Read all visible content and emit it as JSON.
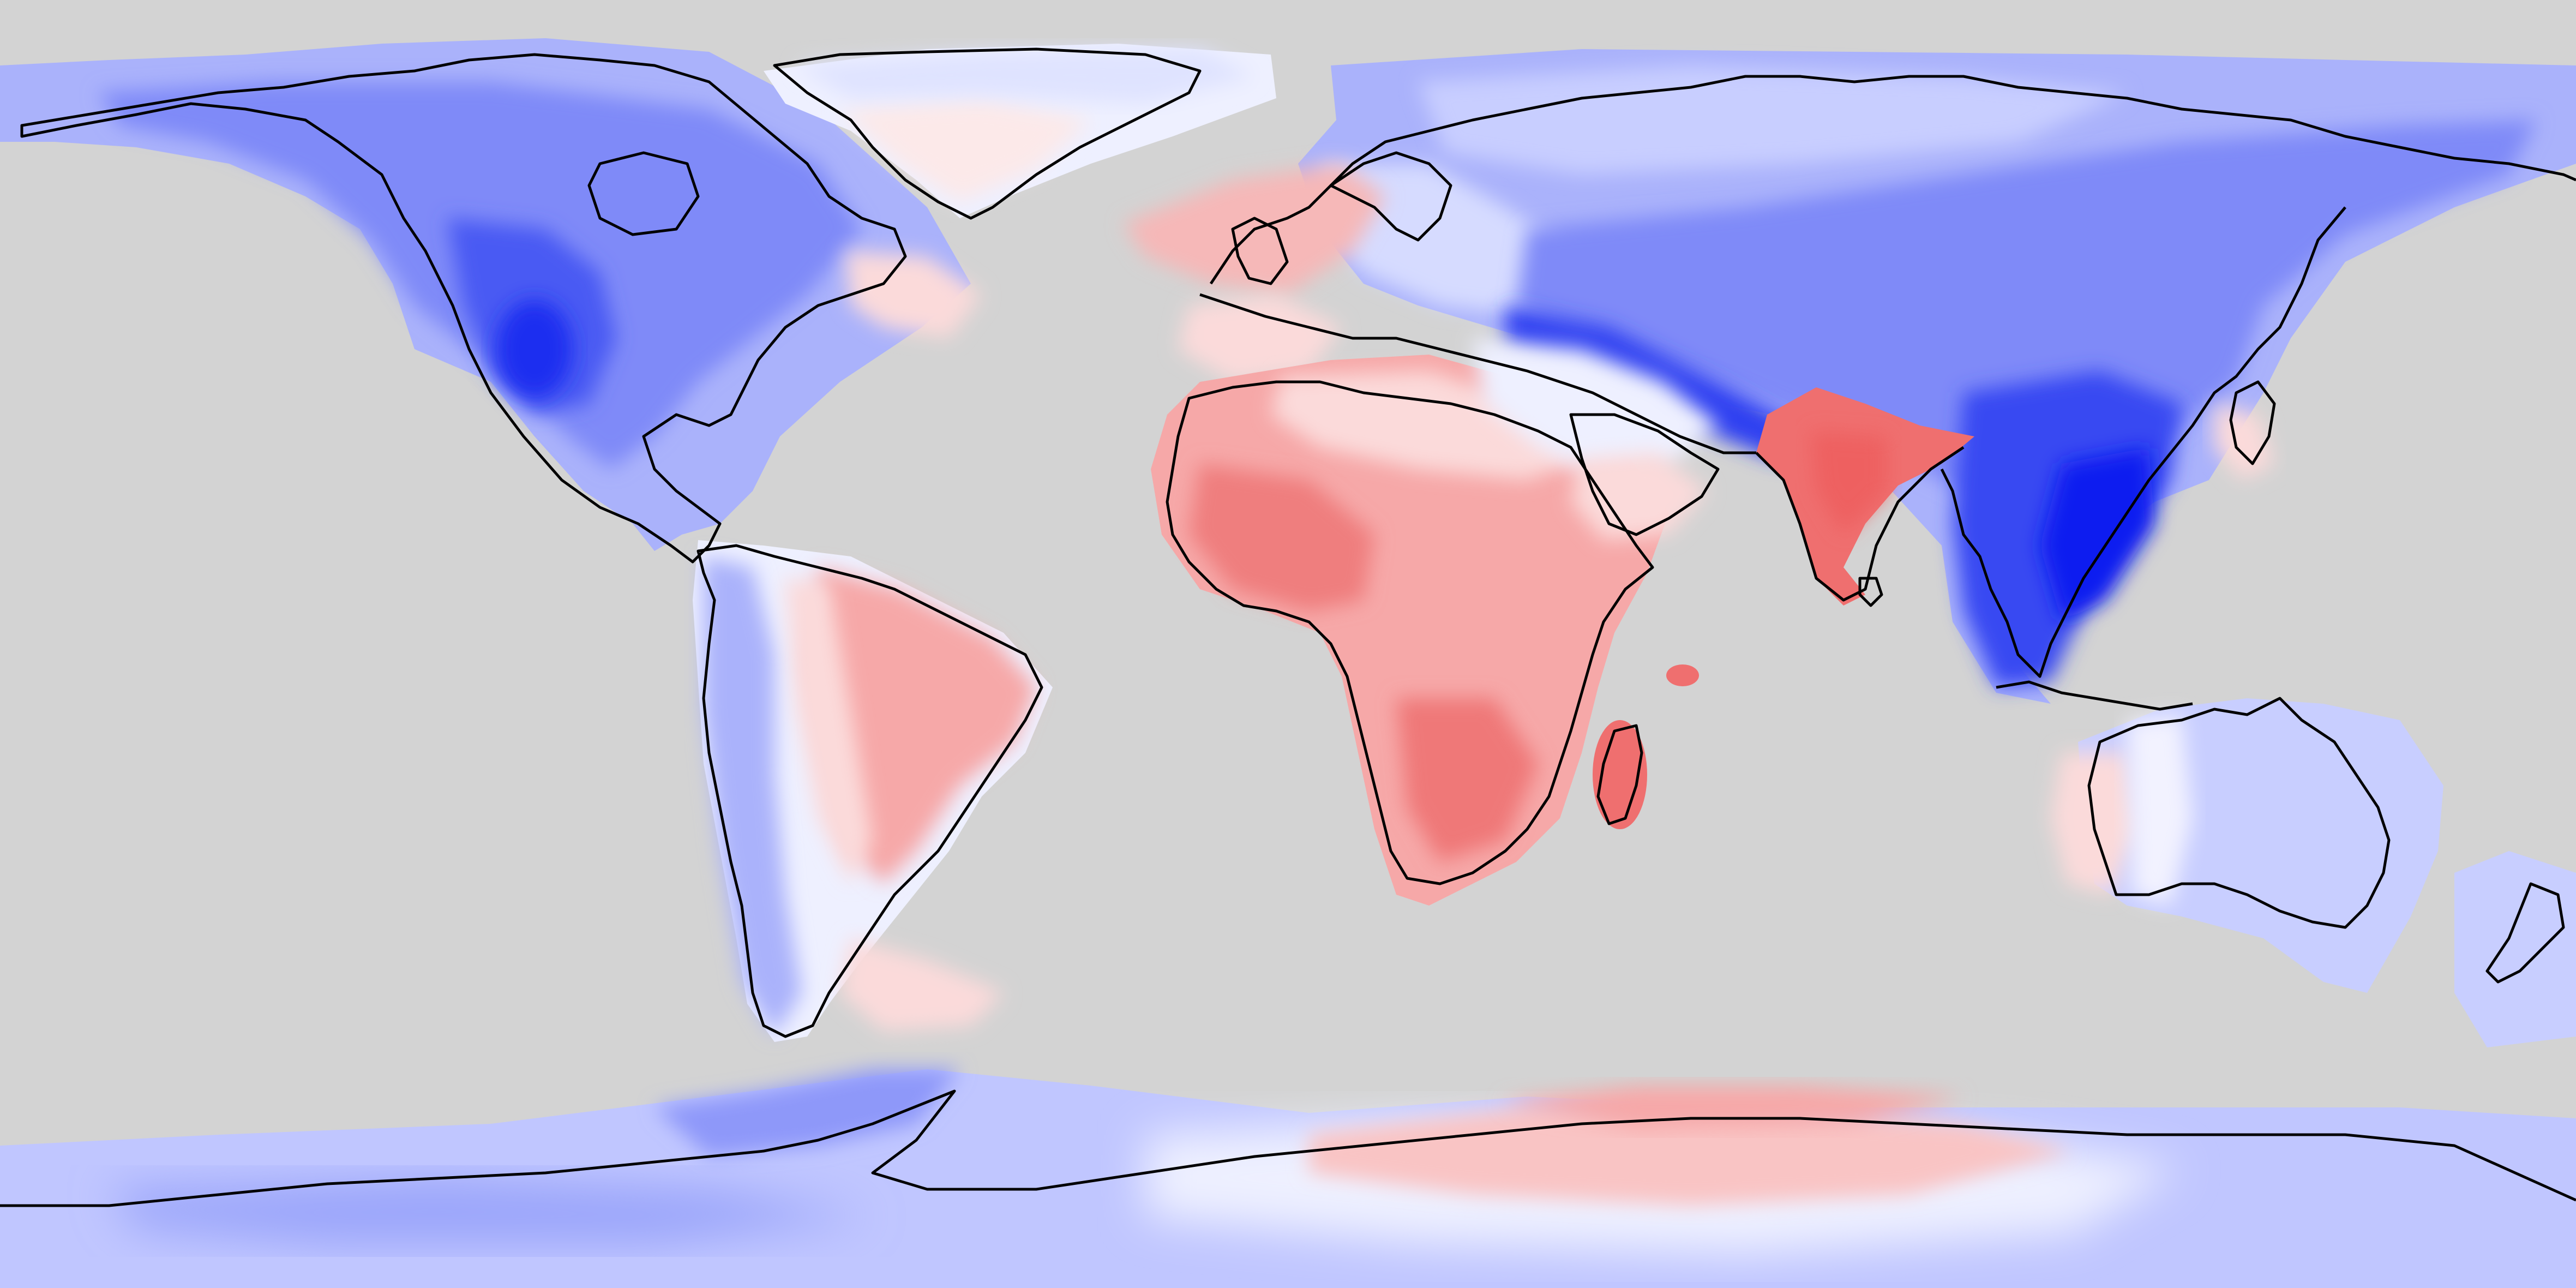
{
  "map": {
    "projection": "equirectangular",
    "view": "world",
    "background_color": "#d3d3d3",
    "coastline_color": "#000000",
    "colormap": {
      "strong_negative": "#0a1ef0",
      "negative": "#5a6af5",
      "weak_negative": "#aab2fb",
      "very_weak_negative": "#e8eaff",
      "neutral": "#f4f4f8",
      "weak_positive": "#fbdada",
      "positive": "#f6a8a8",
      "strong_positive": "#ef6f6f"
    },
    "regions": [
      {
        "name": "north-america",
        "sign": "negative"
      },
      {
        "name": "greenland",
        "sign": "neutral-to-weak-positive"
      },
      {
        "name": "south-america",
        "sign": "weak-positive-east-negative-west"
      },
      {
        "name": "europe",
        "sign": "weak-negative"
      },
      {
        "name": "africa",
        "sign": "positive"
      },
      {
        "name": "middle-east",
        "sign": "neutral"
      },
      {
        "name": "india",
        "sign": "strong-positive"
      },
      {
        "name": "asia",
        "sign": "negative"
      },
      {
        "name": "southeast-asia",
        "sign": "strong-negative"
      },
      {
        "name": "australia",
        "sign": "weak-negative"
      },
      {
        "name": "antarctica",
        "sign": "weak-negative-with-positive-band"
      }
    ]
  }
}
